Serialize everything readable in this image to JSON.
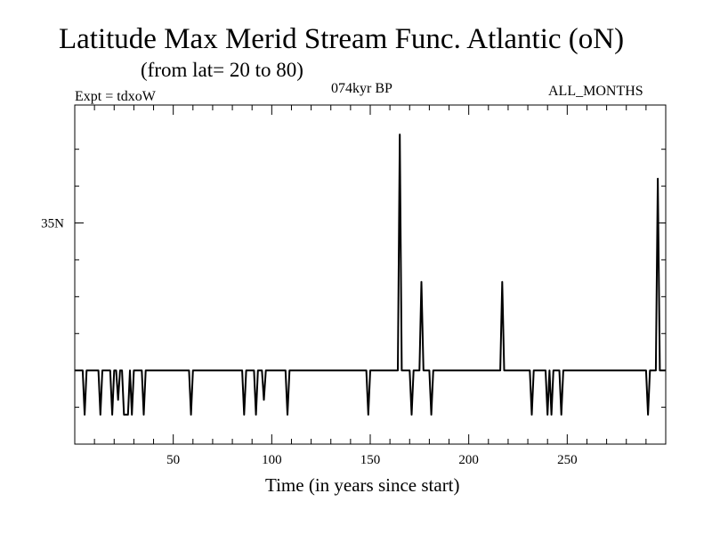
{
  "chart_data": {
    "type": "line",
    "title": "Latitude Max Merid Stream Func. Atlantic (oN)",
    "subtitle": "(from lat= 20 to 80)",
    "experiment_label": "Expt = tdxoW",
    "period_label": "074kyr BP",
    "months_label": "ALL_MONTHS",
    "xlabel": "Time (in years since start)",
    "ylabel": "",
    "xlim": [
      0,
      300
    ],
    "ylim": [
      20,
      43
    ],
    "x_ticks": [
      50,
      100,
      150,
      200,
      250
    ],
    "y_ticks": [
      {
        "value": 35,
        "label": "35N"
      }
    ],
    "y_minor_ticks": [
      22.5,
      25,
      27.5,
      30,
      32.5,
      35,
      37.5,
      40
    ],
    "x_minor_step": 10,
    "grid": false,
    "series": [
      {
        "points": [
          [
            0,
            25
          ],
          [
            4,
            25
          ],
          [
            5,
            22
          ],
          [
            6,
            25
          ],
          [
            12,
            25
          ],
          [
            13,
            22
          ],
          [
            14,
            25
          ],
          [
            18,
            25
          ],
          [
            19,
            22
          ],
          [
            20,
            25
          ],
          [
            21,
            25
          ],
          [
            22,
            23
          ],
          [
            23,
            25
          ],
          [
            24,
            25
          ],
          [
            25,
            22
          ],
          [
            27,
            22
          ],
          [
            28,
            25
          ],
          [
            29,
            22
          ],
          [
            30,
            25
          ],
          [
            34,
            25
          ],
          [
            35,
            22
          ],
          [
            36,
            25
          ],
          [
            58,
            25
          ],
          [
            59,
            22
          ],
          [
            60,
            25
          ],
          [
            85,
            25
          ],
          [
            86,
            22
          ],
          [
            87,
            25
          ],
          [
            91,
            25
          ],
          [
            92,
            22
          ],
          [
            93,
            25
          ],
          [
            95,
            25
          ],
          [
            96,
            23
          ],
          [
            97,
            25
          ],
          [
            107,
            25
          ],
          [
            108,
            22
          ],
          [
            109,
            25
          ],
          [
            148,
            25
          ],
          [
            149,
            22
          ],
          [
            150,
            25
          ],
          [
            164,
            25
          ],
          [
            165,
            41
          ],
          [
            166,
            25
          ],
          [
            170,
            25
          ],
          [
            171,
            22
          ],
          [
            172,
            25
          ],
          [
            175,
            25
          ],
          [
            176,
            31
          ],
          [
            177,
            25
          ],
          [
            180,
            25
          ],
          [
            181,
            22
          ],
          [
            182,
            25
          ],
          [
            216,
            25
          ],
          [
            217,
            31
          ],
          [
            218,
            25
          ],
          [
            231,
            25
          ],
          [
            232,
            22
          ],
          [
            233,
            25
          ],
          [
            239,
            25
          ],
          [
            240,
            22
          ],
          [
            241,
            25
          ],
          [
            242,
            22
          ],
          [
            243,
            25
          ],
          [
            246,
            25
          ],
          [
            247,
            22
          ],
          [
            248,
            25
          ],
          [
            290,
            25
          ],
          [
            291,
            22
          ],
          [
            292,
            25
          ],
          [
            295,
            25
          ],
          [
            296,
            38
          ],
          [
            297,
            25
          ],
          [
            300,
            25
          ]
        ]
      }
    ]
  }
}
